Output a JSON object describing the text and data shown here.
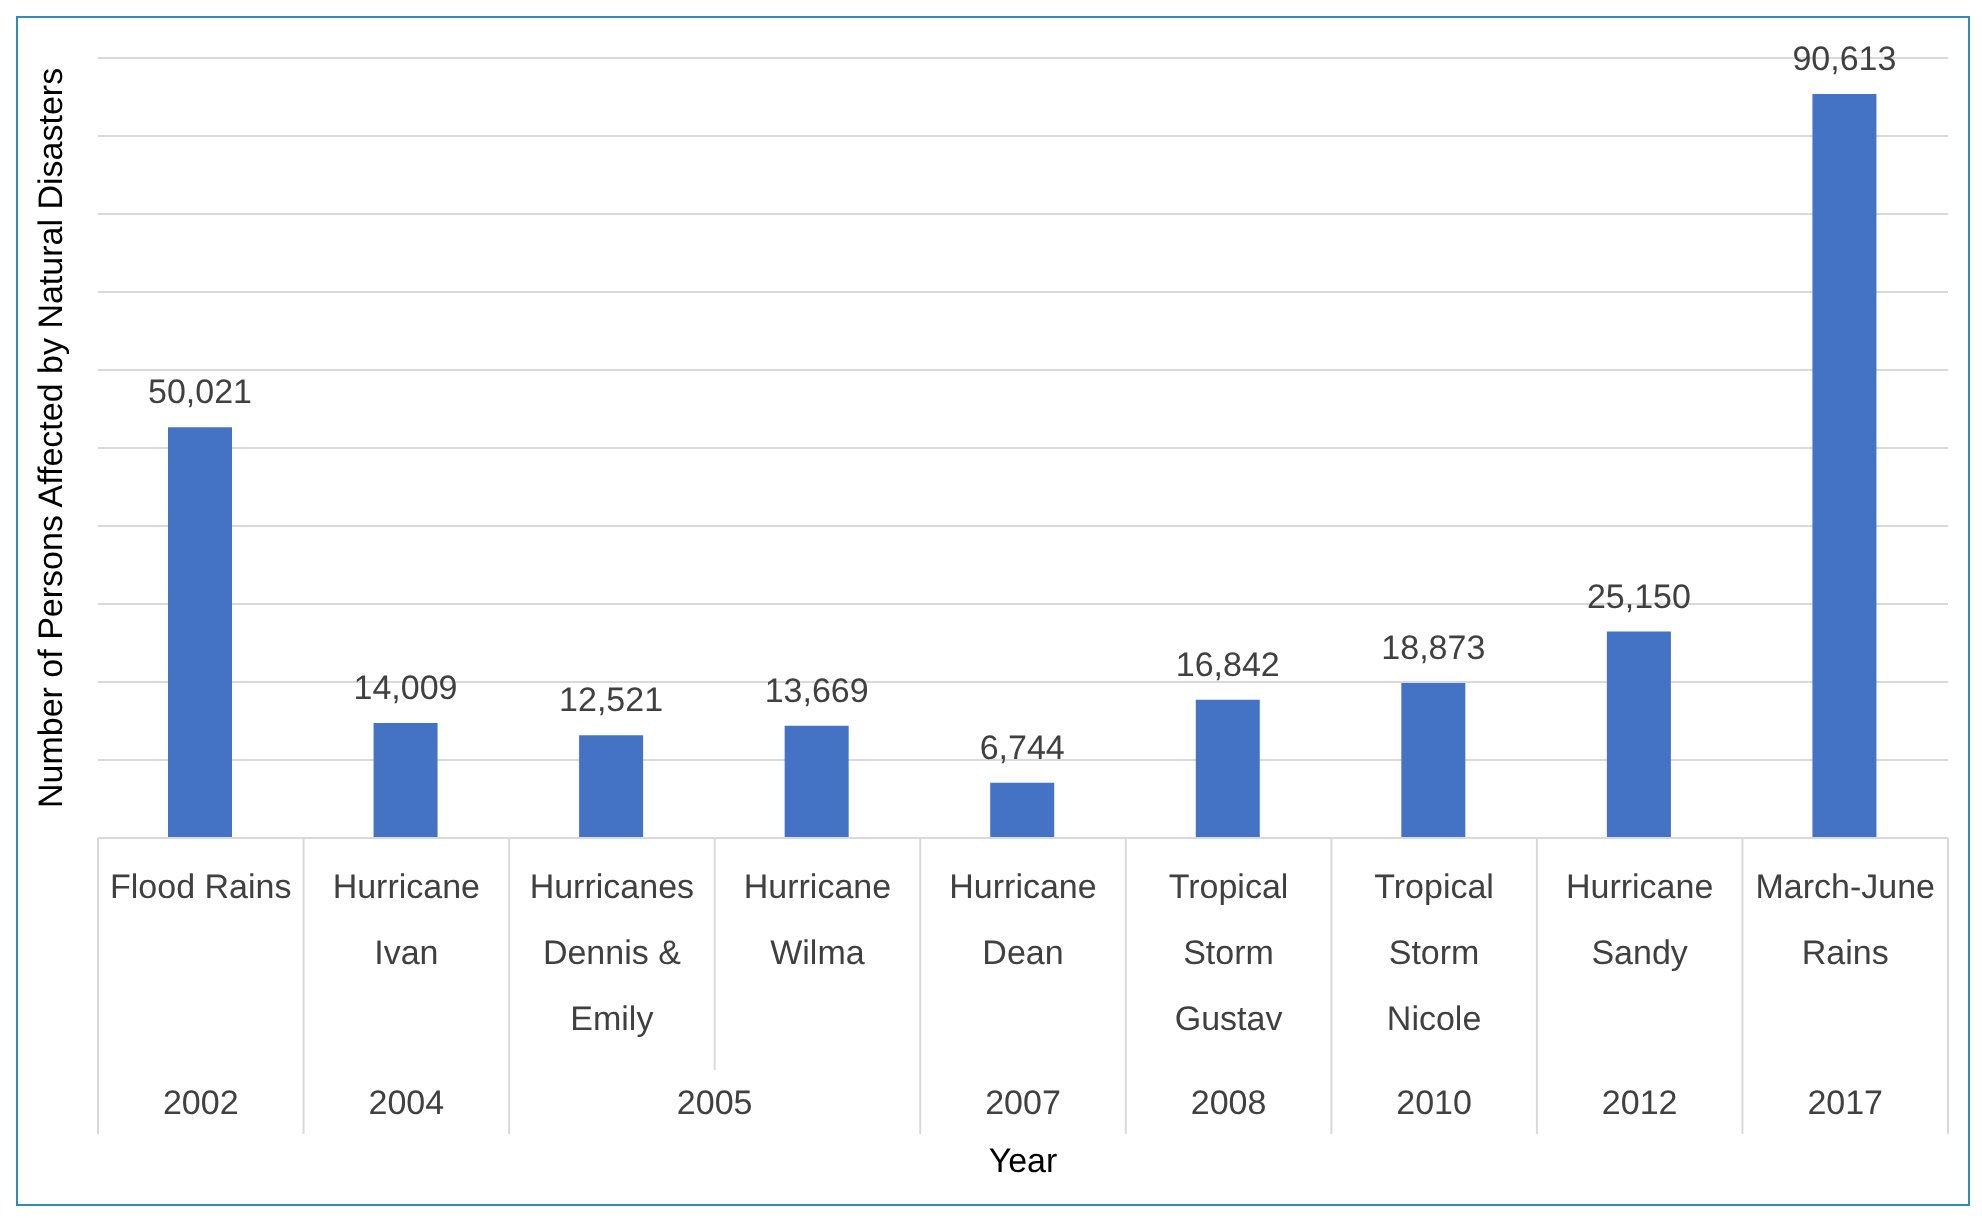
{
  "chart_data": {
    "type": "bar",
    "xlabel": "Year",
    "ylabel": "Number of Persons Affected by Natural Disasters",
    "categories": [
      "Flood Rains",
      "Hurricane Ivan",
      "Hurricanes Dennis & Emily",
      "Hurricane Wilma",
      "Hurricane Dean",
      "Tropical Storm Gustav",
      "Tropical Storm Nicole",
      "Hurricane Sandy",
      "March-June Rains"
    ],
    "values": [
      50021,
      14009,
      12521,
      13669,
      6744,
      16842,
      18873,
      25150,
      90613
    ],
    "value_labels": [
      "50,021",
      "14,009",
      "12,521",
      "13,669",
      "6,744",
      "16,842",
      "18,873",
      "25,150",
      "90,613"
    ],
    "color": "#4472c4",
    "grid": "y",
    "tick_labels": "x",
    "annotations": [
      "2002",
      "2004",
      "2005",
      "2007",
      "2008",
      "2010",
      "2012",
      "2017"
    ]
  }
}
